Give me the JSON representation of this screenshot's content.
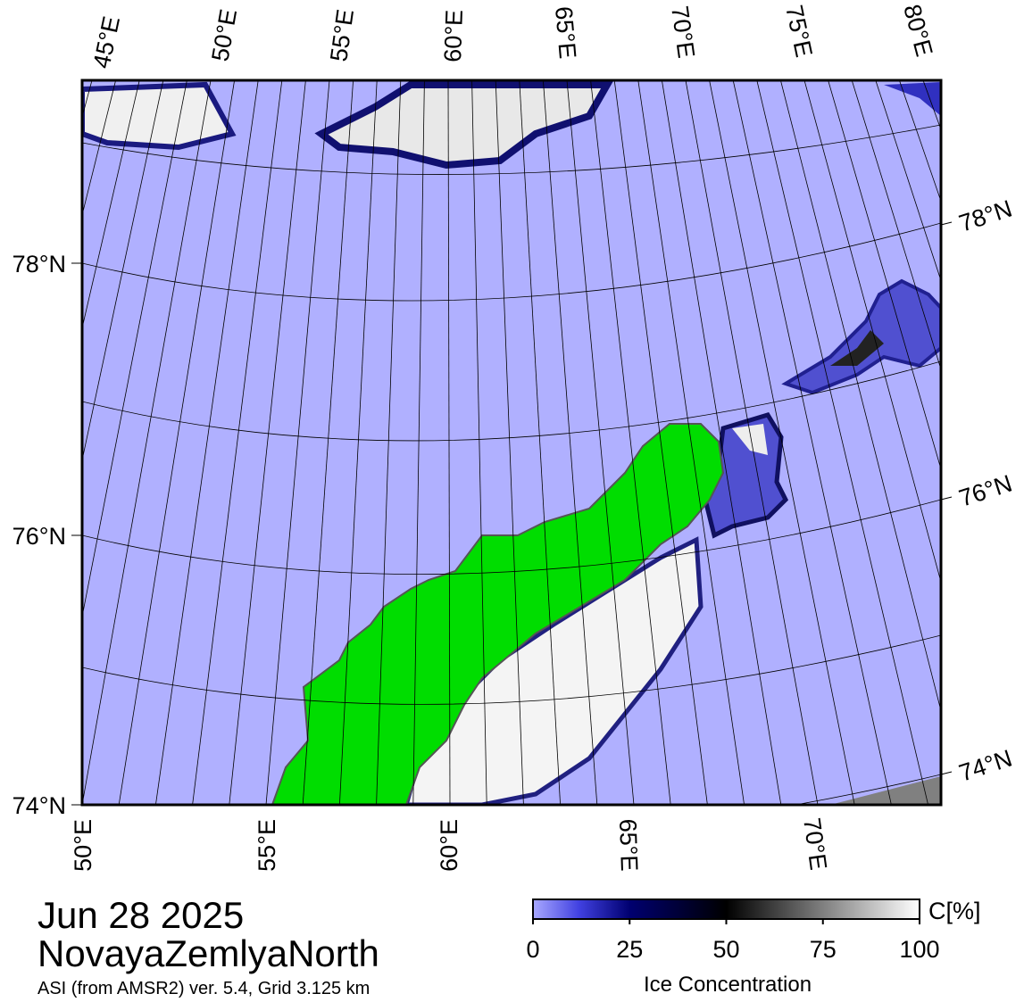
{
  "map": {
    "top_lon_labels": [
      "45°E",
      "50°E",
      "55°E",
      "60°E",
      "65°E",
      "70°E",
      "75°E",
      "80°E"
    ],
    "bottom_lon_labels": [
      "50°E",
      "55°E",
      "60°E",
      "65°E",
      "70°E"
    ],
    "left_lat_labels": [
      "78°N",
      "76°N",
      "74°N"
    ],
    "right_lat_labels": [
      "78°N",
      "76°N",
      "74°N"
    ],
    "date": "Jun 28 2025",
    "region": "NovayaZemlyaNorth",
    "source": "ASI (from AMSR2) ver. 5.4,  Grid 3.125 km"
  },
  "colorbar": {
    "ticks": [
      0,
      25,
      50,
      75,
      100
    ],
    "unit": "C[%]",
    "label": "Ice Concentration"
  }
}
